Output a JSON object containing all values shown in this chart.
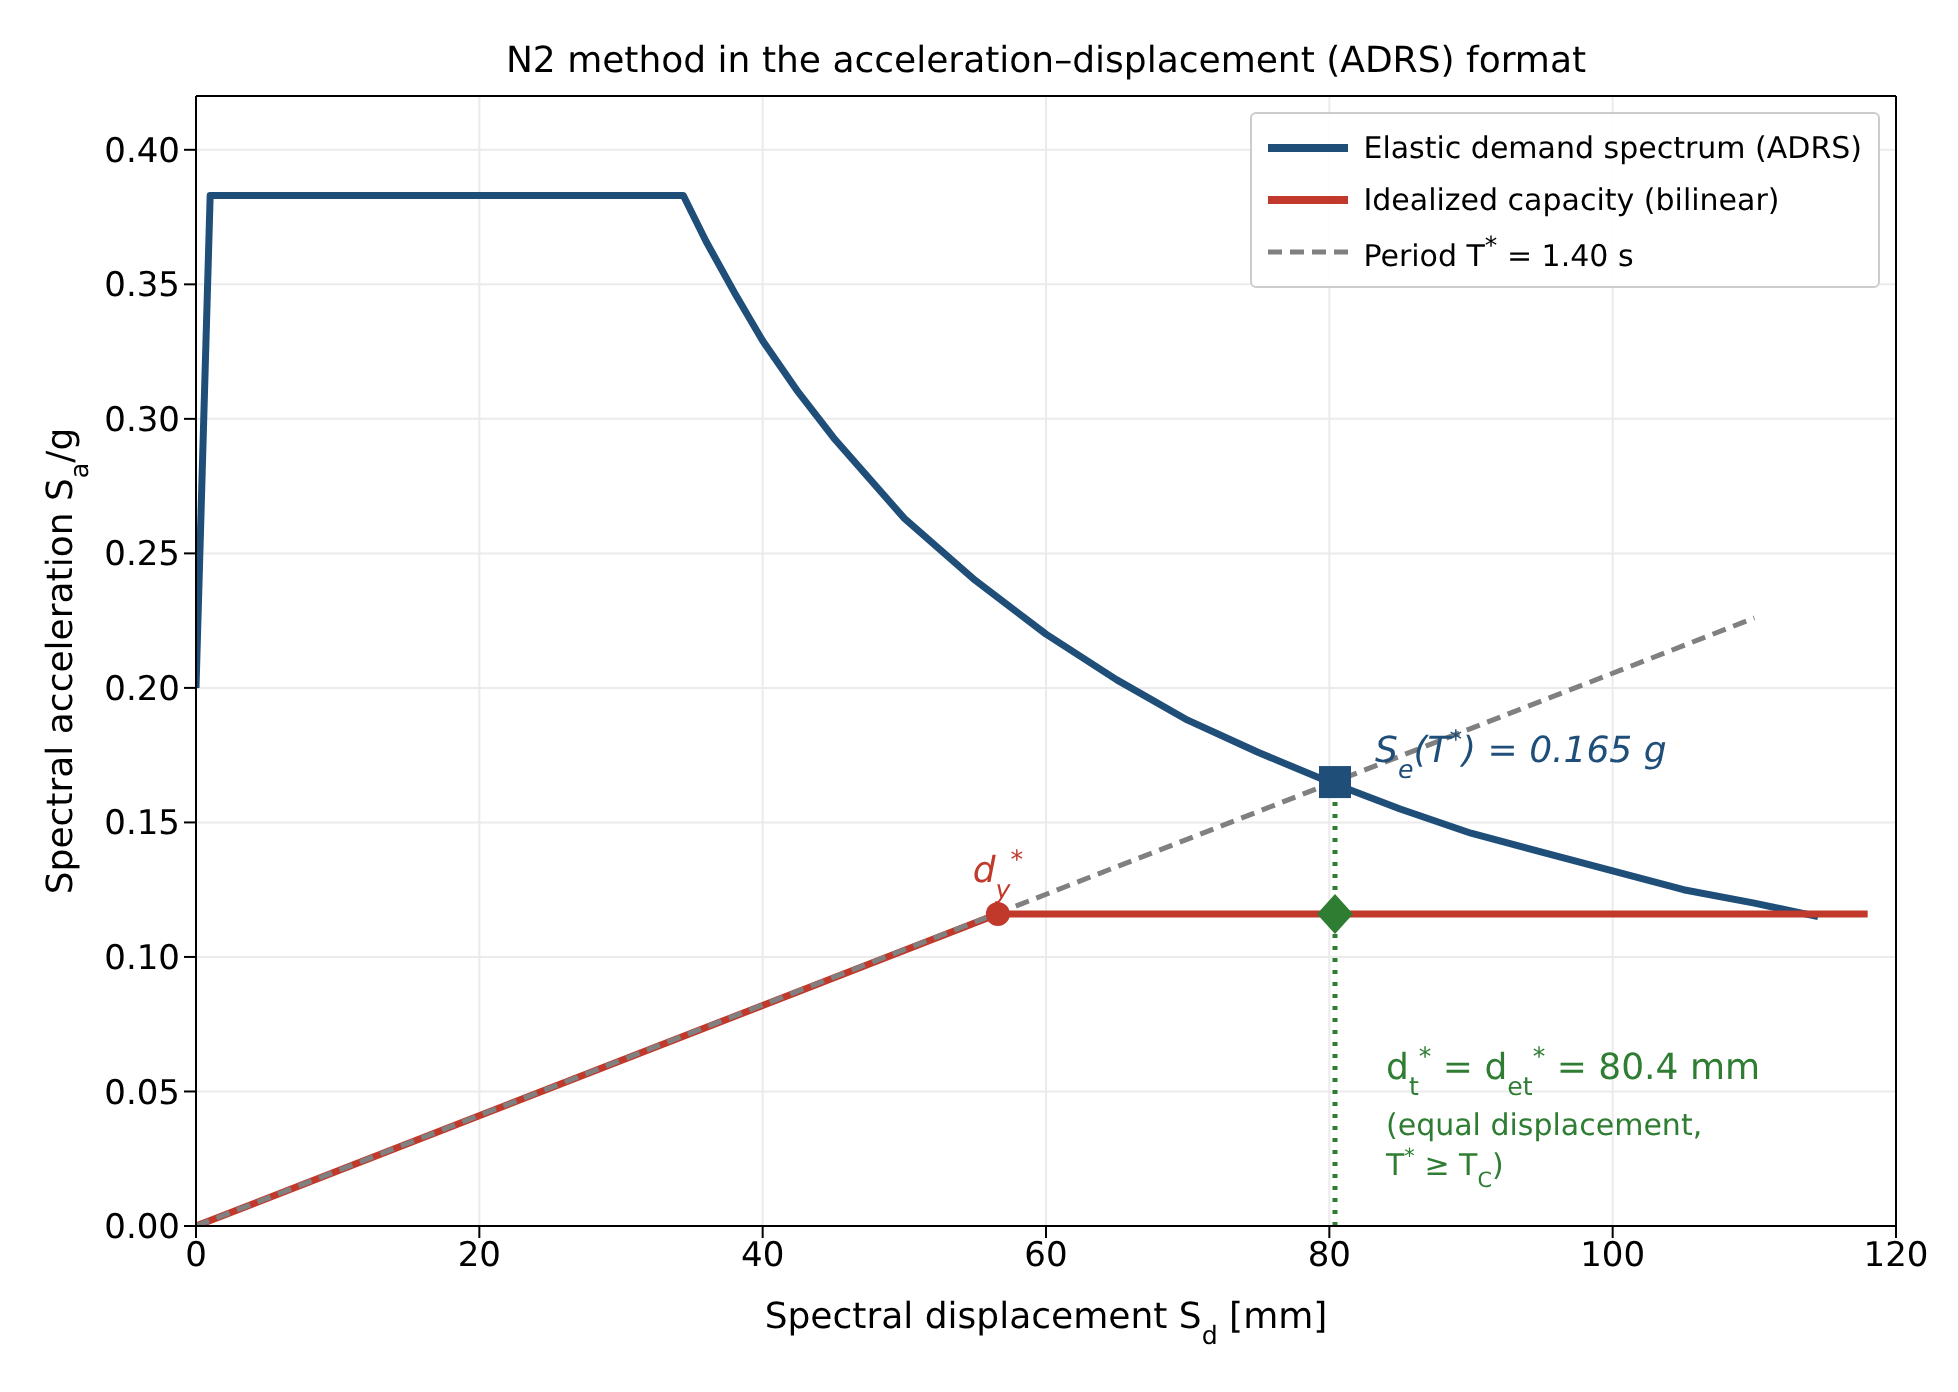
{
  "chart_data": {
    "type": "line",
    "title": "N2 method in the acceleration–displacement (ADRS) format",
    "xlabel": "Spectral displacement  S$_{d}$  [mm]",
    "ylabel": "Spectral acceleration  S$_{a}$/g",
    "xlim": [
      0,
      120
    ],
    "xticks": [
      0,
      20,
      40,
      60,
      80,
      100,
      120
    ],
    "ylim": [
      0,
      0.42
    ],
    "yticks": [
      {
        "value": 0,
        "label": "0.00"
      },
      {
        "value": 0.05,
        "label": "0.05"
      },
      {
        "value": 0.1,
        "label": "0.10"
      },
      {
        "value": 0.15,
        "label": "0.15"
      },
      {
        "value": 0.2,
        "label": "0.20"
      },
      {
        "value": 0.25,
        "label": "0.25"
      },
      {
        "value": 0.3,
        "label": "0.30"
      },
      {
        "value": 0.35,
        "label": "0.35"
      },
      {
        "value": 0.4,
        "label": "0.40"
      }
    ],
    "grid": true,
    "legend": "top right",
    "series": [
      {
        "name": "Elastic demand spectrum (ADRS)",
        "color": "#1f4e79",
        "line_style": "solid",
        "x": [
          0,
          1,
          34.4,
          36,
          38,
          40,
          42.5,
          45,
          50,
          55,
          60,
          65,
          70,
          75,
          80,
          85,
          90,
          95,
          100,
          105,
          110,
          114.5
        ],
        "values": [
          0.2,
          0.383,
          0.383,
          0.366,
          0.347,
          0.329,
          0.31,
          0.293,
          0.263,
          0.24,
          0.22,
          0.203,
          0.188,
          0.176,
          0.165,
          0.155,
          0.146,
          0.139,
          0.132,
          0.125,
          0.12,
          0.115
        ]
      },
      {
        "name": "Idealized capacity (bilinear)",
        "color": "#c0392b",
        "line_style": "solid",
        "x": [
          0,
          56.6,
          118
        ],
        "values": [
          0,
          0.116,
          0.116
        ]
      },
      {
        "name": "Period  T$^{*}$ = 1.40 s",
        "color": "#808080",
        "line_style": "dashed",
        "x": [
          0,
          110
        ],
        "values": [
          0,
          0.226
        ]
      },
      {
        "color": "#2e7d32",
        "line_style": "dotted",
        "x": [
          80.4,
          80.4
        ],
        "values": [
          0,
          0.165
        ]
      },
      {
        "type": "scatter",
        "marker": "circle",
        "color": "#c0392b",
        "x": [
          56.6
        ],
        "values": [
          0.116
        ]
      },
      {
        "type": "scatter",
        "marker": "square",
        "color": "#1f4e79",
        "x": [
          80.4
        ],
        "values": [
          0.165
        ]
      },
      {
        "type": "scatter",
        "marker": "diamond",
        "color": "#2e7d32",
        "x": [
          80.4
        ],
        "values": [
          0.116
        ]
      }
    ],
    "annotations": [
      {
        "text": "S$_{e}$(T$^{*}$) = 0.165 g",
        "x": 80.4,
        "y": 0.165
      },
      {
        "text": "d$_{y}$$^{*}$",
        "x": 56.6,
        "y": 0.116
      },
      "d$_{t}$$^{*}$ = d$_{et}$$^{*}$ = 80.4 mm",
      "(equal displacement,",
      "T$^{*}$ ≥ T$_{C}$)"
    ]
  }
}
